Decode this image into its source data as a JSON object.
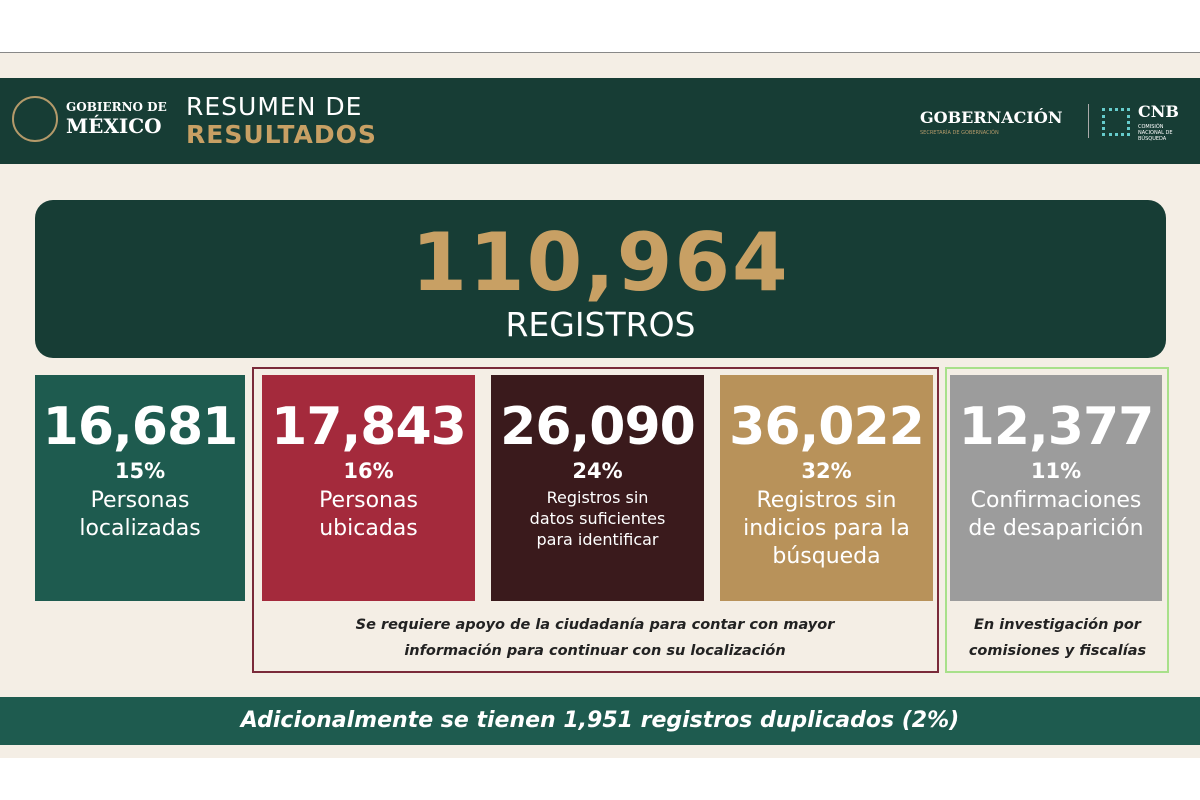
{
  "header": {
    "logo_line1": "GOBIERNO DE",
    "logo_line2": "MÉXICO",
    "title_line1": "RESUMEN DE",
    "title_line2": "RESULTADOS",
    "right_logo": "GOBERNACIÓN",
    "right_sub": "SECRETARÍA DE GOBERNACIÓN",
    "cnb": "CNB",
    "cnb_sub": "COMISIÓN NACIONAL DE BÚSQUEDA"
  },
  "total": {
    "value": "110,964",
    "label": "REGISTROS"
  },
  "cards": [
    {
      "value": "16,681",
      "percent": "15%",
      "label": "Personas localizadas"
    },
    {
      "value": "17,843",
      "percent": "16%",
      "label": "Personas ubicadas"
    },
    {
      "value": "26,090",
      "percent": "24%",
      "label": "Registros sin datos suficientes para identificar"
    },
    {
      "value": "36,022",
      "percent": "32%",
      "label": "Registros sin indicios para la búsqueda"
    },
    {
      "value": "12,377",
      "percent": "11%",
      "label": "Confirmaciones de desaparición"
    }
  ],
  "notes": {
    "group": "Se requiere apoyo de la ciudadanía para contar con mayor información para continuar con su localización",
    "confirm": "En investigación por comisiones y fiscalías"
  },
  "footer": "Adicionalmente se tienen 1,951 registros duplicados (2%)"
}
